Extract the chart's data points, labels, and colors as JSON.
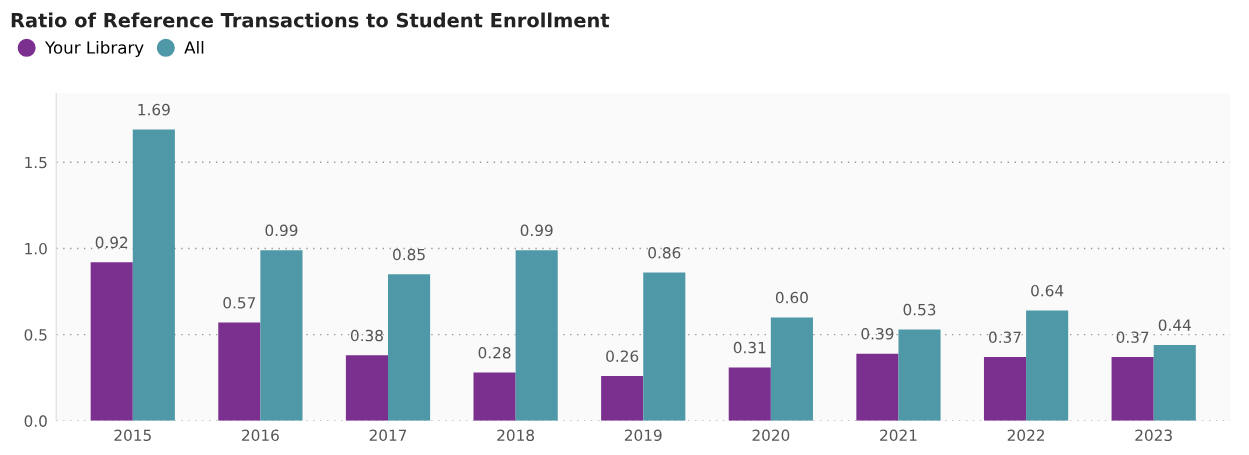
{
  "chart_data": {
    "type": "bar",
    "title": "Ratio of Reference Transactions to Student Enrollment",
    "categories": [
      "2015",
      "2016",
      "2017",
      "2018",
      "2019",
      "2020",
      "2021",
      "2022",
      "2023"
    ],
    "series": [
      {
        "name": "Your Library",
        "color": "#7b2f8f",
        "values": [
          0.92,
          0.57,
          0.38,
          0.28,
          0.26,
          0.31,
          0.39,
          0.37,
          0.37
        ],
        "value_labels": [
          "0.92",
          "0.57",
          "0.38",
          "0.28",
          "0.26",
          "0.31",
          "0.39",
          "0.37",
          "0.37"
        ]
      },
      {
        "name": "All",
        "color": "#4e98a8",
        "values": [
          1.69,
          0.99,
          0.85,
          0.99,
          0.86,
          0.6,
          0.53,
          0.64,
          0.44
        ],
        "value_labels": [
          "1.69",
          "0.99",
          "0.85",
          "0.99",
          "0.86",
          "0.60",
          "0.53",
          "0.64",
          "0.44"
        ]
      }
    ],
    "ylim": [
      0,
      1.9
    ],
    "yticks": [
      {
        "value": 0,
        "label": "0.0"
      },
      {
        "value": 0.5,
        "label": "0.5"
      },
      {
        "value": 1.0,
        "label": "1.0"
      },
      {
        "value": 1.5,
        "label": "1.5"
      }
    ],
    "grid": "y",
    "legend": "top left"
  }
}
